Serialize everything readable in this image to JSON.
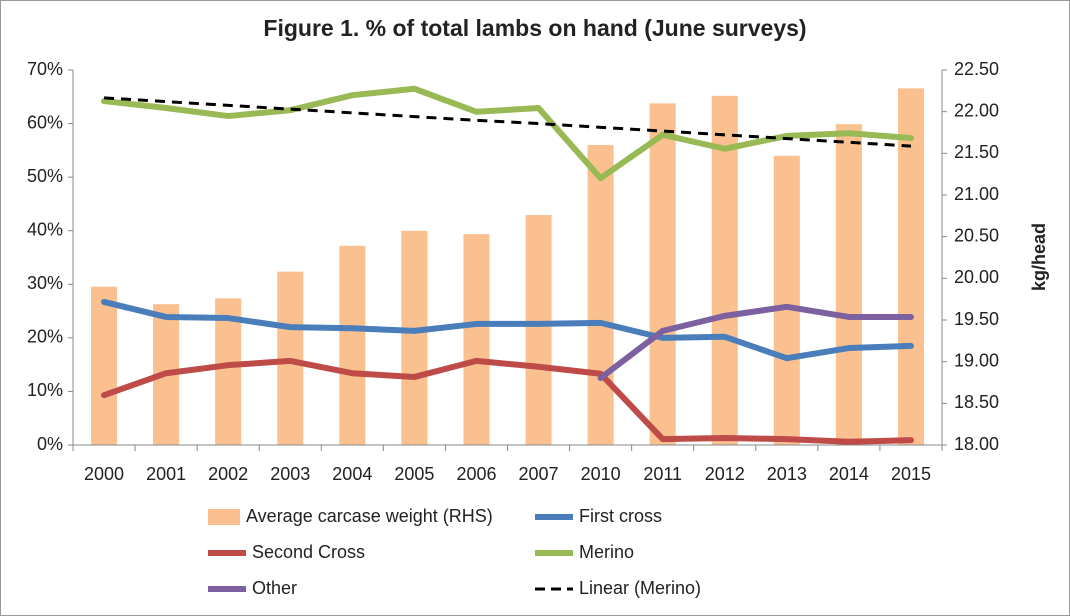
{
  "chart_data": {
    "type": "combo",
    "title": "Figure 1. % of total lambs on hand (June surveys)",
    "y2label": "kg/head",
    "categories": [
      "2000",
      "2001",
      "2002",
      "2003",
      "2004",
      "2005",
      "2006",
      "2007",
      "2010",
      "2011",
      "2012",
      "2013",
      "2014",
      "2015"
    ],
    "ylim": [
      0,
      70
    ],
    "yticks": [
      {
        "value": 0,
        "label": "0%"
      },
      {
        "value": 10,
        "label": "10%"
      },
      {
        "value": 20,
        "label": "20%"
      },
      {
        "value": 30,
        "label": "30%"
      },
      {
        "value": 40,
        "label": "40%"
      },
      {
        "value": 50,
        "label": "50%"
      },
      {
        "value": 60,
        "label": "60%"
      },
      {
        "value": 70,
        "label": "70%"
      }
    ],
    "y2lim": [
      18,
      22.5
    ],
    "y2ticks": [
      {
        "value": 18,
        "label": "18.00"
      },
      {
        "value": 18.5,
        "label": "18.50"
      },
      {
        "value": 19,
        "label": "19.00"
      },
      {
        "value": 19.5,
        "label": "19.50"
      },
      {
        "value": 20,
        "label": "20.00"
      },
      {
        "value": 20.5,
        "label": "20.50"
      },
      {
        "value": 21,
        "label": "21.00"
      },
      {
        "value": 21.5,
        "label": "21.50"
      },
      {
        "value": 22,
        "label": "22.00"
      },
      {
        "value": 22.5,
        "label": "22.50"
      }
    ],
    "grid": false,
    "series": [
      {
        "name": "Average carcase weight (RHS)",
        "type": "bar",
        "axis": "y2",
        "color": "#fac090",
        "values": [
          19.9,
          19.69,
          19.76,
          20.08,
          20.39,
          20.57,
          20.53,
          20.76,
          21.6,
          22.1,
          22.19,
          21.47,
          21.85,
          22.28
        ]
      },
      {
        "name": "First cross",
        "type": "line",
        "color": "#4a7ebb",
        "values": [
          26.7,
          23.9,
          23.7,
          22.0,
          21.8,
          21.3,
          22.6,
          22.6,
          22.8,
          20.0,
          20.2,
          16.2,
          18.1,
          18.5
        ]
      },
      {
        "name": "Second Cross",
        "type": "line",
        "color": "#be4b48",
        "values": [
          9.3,
          13.4,
          14.9,
          15.7,
          13.4,
          12.7,
          15.7,
          14.6,
          13.3,
          1.1,
          1.3,
          1.1,
          0.6,
          0.9
        ]
      },
      {
        "name": "Merino",
        "type": "line",
        "color": "#98b954",
        "values": [
          64.2,
          62.9,
          61.4,
          62.5,
          65.3,
          66.5,
          62.2,
          62.9,
          49.8,
          57.9,
          55.3,
          57.7,
          58.2,
          57.3
        ]
      },
      {
        "name": "Other",
        "type": "line",
        "color": "#7d60a0",
        "values": [
          null,
          null,
          null,
          null,
          null,
          null,
          null,
          null,
          12.5,
          21.3,
          24.1,
          25.8,
          23.9,
          23.9
        ]
      },
      {
        "name": "Linear (Merino)",
        "type": "line",
        "dash": true,
        "color": "#000000",
        "values": [
          64.8,
          64.1,
          63.4,
          62.7,
          62.0,
          61.3,
          60.6,
          60.0,
          59.3,
          58.6,
          57.9,
          57.2,
          56.5,
          55.8
        ]
      }
    ]
  }
}
